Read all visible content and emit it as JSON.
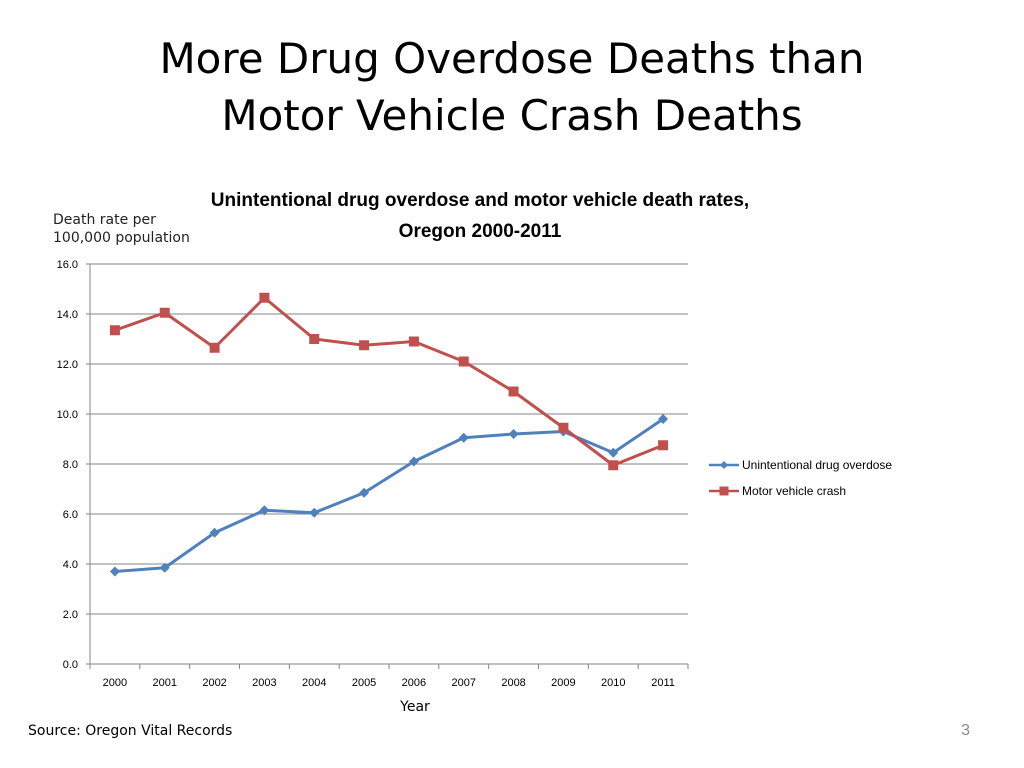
{
  "slide": {
    "title_line1": "More Drug Overdose Deaths than",
    "title_line2": "Motor Vehicle Crash Deaths",
    "source": "Source: Oregon Vital Records",
    "number": "3"
  },
  "chart_data": {
    "type": "line",
    "title_line1": "Unintentional drug overdose and motor vehicle death rates,",
    "title_line2": "Oregon 2000-2011",
    "ylabel_line1": "Death rate per",
    "ylabel_line2": "100,000 population",
    "xlabel": "Year",
    "x": [
      "2000",
      "2001",
      "2002",
      "2003",
      "2004",
      "2005",
      "2006",
      "2007",
      "2008",
      "2009",
      "2010",
      "2011"
    ],
    "ylim": [
      0,
      16
    ],
    "yticks": [
      "0.0",
      "2.0",
      "4.0",
      "6.0",
      "8.0",
      "10.0",
      "12.0",
      "14.0",
      "16.0"
    ],
    "grid": true,
    "legend_position": "right",
    "series": [
      {
        "name": "Unintentional drug overdose",
        "color": "#4f81bd",
        "marker": "diamond",
        "values": [
          3.7,
          3.85,
          5.25,
          6.15,
          6.05,
          6.85,
          8.1,
          9.05,
          9.2,
          9.3,
          8.45,
          9.8
        ]
      },
      {
        "name": "Motor vehicle crash",
        "color": "#c0504d",
        "marker": "square",
        "values": [
          13.35,
          14.05,
          12.65,
          14.65,
          13.0,
          12.75,
          12.9,
          12.1,
          10.9,
          9.45,
          7.95,
          8.75
        ]
      }
    ]
  }
}
